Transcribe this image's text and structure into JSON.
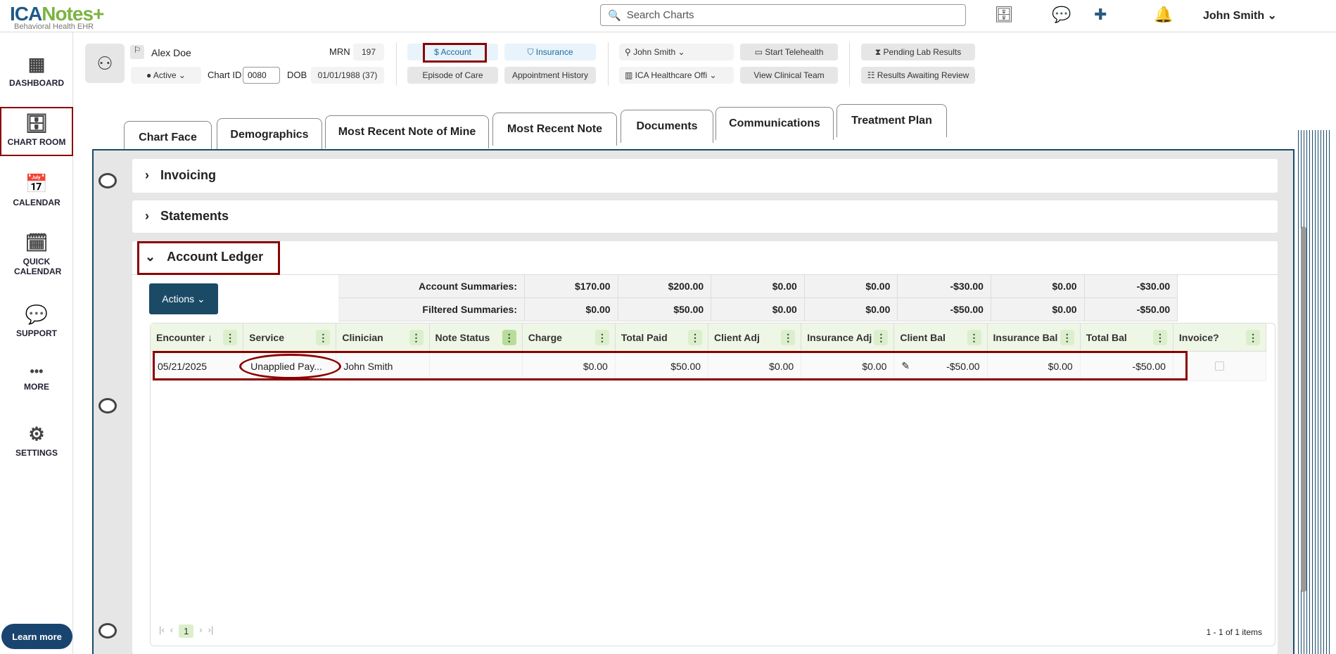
{
  "header": {
    "logo_main": "ICA",
    "logo_accent": "Notes+",
    "logo_sub": "Behavioral Health EHR",
    "search_placeholder": "Search Charts",
    "user": "John Smith ⌄"
  },
  "sidebar": {
    "items": [
      {
        "label": "DASHBOARD",
        "icon": "▦"
      },
      {
        "label": "CHART ROOM",
        "icon": "🗄"
      },
      {
        "label": "CALENDAR",
        "icon": "📅"
      },
      {
        "label": "QUICK CALENDAR",
        "icon": "🗓"
      },
      {
        "label": "SUPPORT",
        "icon": "💬"
      },
      {
        "label": "MORE",
        "icon": "•••"
      },
      {
        "label": "SETTINGS",
        "icon": "⚙"
      }
    ],
    "learn_more": "Learn more"
  },
  "patient": {
    "name": "Alex Doe",
    "status": "● Active ⌄",
    "chart_id_label": "Chart ID",
    "chart_id": "0080",
    "mrn_label": "MRN",
    "mrn": "197",
    "dob_label": "DOB",
    "dob": "01/01/1988 (37)"
  },
  "buttons": {
    "account": "$ Account",
    "insurance": "⛉ Insurance",
    "episode": "Episode of Care",
    "appt": "Appointment History",
    "clinician": "⚲ John Smith ⌄",
    "office": "▥ ICA Healthcare Offi ⌄",
    "telehealth": "▭ Start Telehealth",
    "team": "View Clinical Team",
    "lab": "⧗ Pending Lab Results",
    "review": "☷ Results Awaiting Review"
  },
  "tabs": [
    "Chart Face",
    "Demographics",
    "Most Recent Note of Mine",
    "Most Recent Note",
    "Documents",
    "Communications",
    "Treatment Plan"
  ],
  "sections": {
    "invoicing": "Invoicing",
    "statements": "Statements",
    "ledger": "Account Ledger"
  },
  "actions": "Actions ⌄",
  "summaries": {
    "account": {
      "label": "Account Summaries:",
      "values": [
        "$170.00",
        "$200.00",
        "$0.00",
        "$0.00",
        "-$30.00",
        "$0.00",
        "-$30.00"
      ]
    },
    "filtered": {
      "label": "Filtered Summaries:",
      "values": [
        "$0.00",
        "$50.00",
        "$0.00",
        "$0.00",
        "-$50.00",
        "$0.00",
        "-$50.00"
      ]
    }
  },
  "columns": [
    "Encounter ↓",
    "Service",
    "Clinician",
    "Note Status",
    "Charge",
    "Total Paid",
    "Client Adj",
    "Insurance Adj",
    "Client Bal",
    "Insurance Bal",
    "Total Bal",
    "Invoice?"
  ],
  "rows": [
    {
      "encounter": "05/21/2025",
      "service": "Unapplied Pay...",
      "clinician": "John Smith",
      "note_status": "",
      "charge": "$0.00",
      "total_paid": "$50.00",
      "client_adj": "$0.00",
      "insurance_adj": "$0.00",
      "client_bal": "-$50.00",
      "insurance_bal": "$0.00",
      "total_bal": "-$50.00",
      "invoice": false
    }
  ],
  "pager": {
    "page": "1",
    "summary": "1 - 1 of 1 items"
  }
}
